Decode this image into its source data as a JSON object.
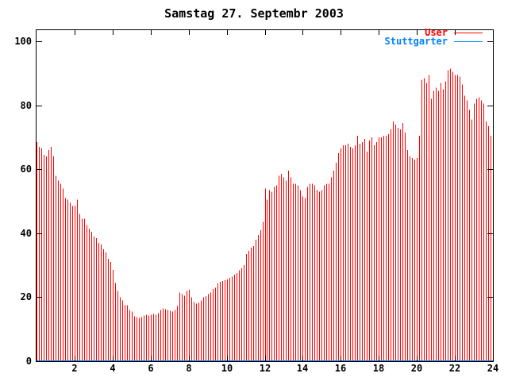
{
  "window": {
    "background": "#ffffff",
    "foreground": "#000000"
  },
  "chart_data": {
    "type": "bar",
    "style": "impulses",
    "title": "Samstag 27. Septembr 2003",
    "xlabel": "",
    "ylabel": "",
    "xlim": [
      0,
      24
    ],
    "ylim": [
      0,
      104
    ],
    "grid": false,
    "legend_position": "top-right",
    "x_ticks": [
      2,
      4,
      6,
      8,
      10,
      12,
      14,
      16,
      18,
      20,
      22,
      24
    ],
    "y_ticks": [
      0,
      20,
      40,
      60,
      80,
      100
    ],
    "x_unit": "hour-of-day",
    "sample_interval_hours": 0.125,
    "series": [
      {
        "name": "User",
        "color": "#ff0000",
        "style": "impulses",
        "x_start": 0,
        "x_step": 0.125,
        "values": [
          68.5,
          67,
          66.5,
          64.5,
          64,
          66,
          67,
          64,
          58,
          56.5,
          55.5,
          54,
          51,
          50.5,
          49.5,
          48.5,
          48.5,
          50.5,
          46,
          44.5,
          44.5,
          42.5,
          41.5,
          40.5,
          39,
          38.5,
          37,
          36.5,
          35,
          34,
          32,
          31,
          28.5,
          24.5,
          22,
          20,
          19,
          17.5,
          17.5,
          16,
          15.5,
          14,
          13.8,
          13.5,
          13.8,
          14.3,
          14.5,
          14.3,
          14.5,
          14.8,
          14.5,
          15,
          16,
          16.5,
          16.3,
          16,
          15.7,
          15.5,
          16,
          17.3,
          21.5,
          21,
          20.5,
          22,
          22.3,
          20,
          18.5,
          18,
          18.2,
          19,
          20,
          20.3,
          21,
          21.5,
          22.6,
          23,
          24.3,
          24.8,
          25.1,
          25.3,
          25.5,
          26,
          26.4,
          27,
          27.5,
          28.4,
          29,
          30,
          33.5,
          34.5,
          35.5,
          36,
          38,
          39.5,
          41,
          43.5,
          54,
          50.5,
          53.5,
          53,
          54.5,
          55,
          58,
          58.5,
          57.5,
          56.5,
          59.5,
          57.5,
          55.5,
          55.5,
          55,
          53.5,
          51.5,
          51,
          54.5,
          55.5,
          55.5,
          55,
          53.5,
          53,
          53.5,
          55,
          55.5,
          55.5,
          57.5,
          59.5,
          62,
          65,
          66.5,
          67.5,
          67.5,
          68,
          67,
          66.5,
          67.5,
          70.5,
          68,
          68.5,
          69.5,
          65.5,
          69,
          70,
          67.5,
          68.5,
          70,
          70,
          70.5,
          70.5,
          71,
          72.5,
          75,
          74,
          73,
          72.5,
          74.5,
          71.5,
          66,
          64,
          63.5,
          63,
          63.5,
          70.5,
          88,
          88.5,
          87,
          89.5,
          82,
          84.5,
          85.5,
          84.5,
          87,
          85,
          87.5,
          91,
          91.5,
          90.5,
          89.5,
          89.5,
          89,
          86.5,
          83,
          81.5,
          78.5,
          75.5,
          80.5,
          82,
          82.5,
          81.5,
          80.5,
          75,
          73.5,
          70.5,
          72.5
        ]
      },
      {
        "name": "Stuttgarter",
        "color": "#0080ff",
        "style": "line",
        "constant_value": 0
      }
    ]
  }
}
